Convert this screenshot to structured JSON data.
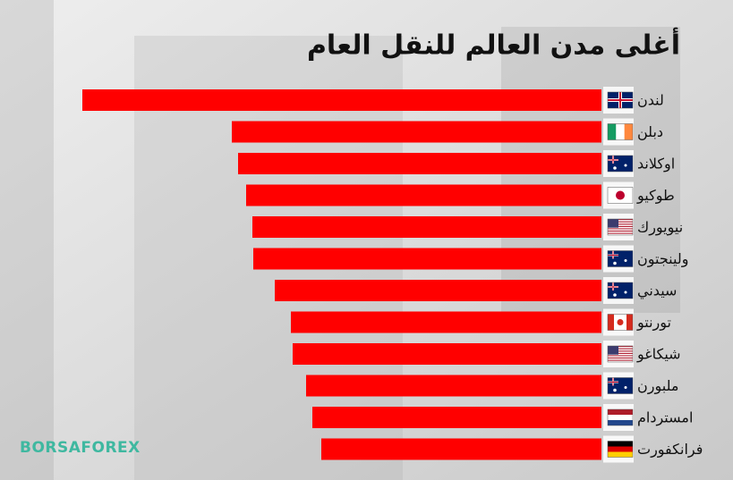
{
  "chart_data": {
    "type": "bar",
    "orientation": "horizontal",
    "title": "أغلى مدن العالم للنقل العام",
    "categories": [
      "لندن",
      "دبلن",
      "اوكلاند",
      "طوكيو",
      "نيويورك",
      "ولينجتون",
      "سيدني",
      "تورنتو",
      "شيكاغو",
      "ملبورن",
      "امستردام",
      "فرانكفورت"
    ],
    "values": [
      580,
      413,
      406,
      397,
      390,
      389,
      365,
      347,
      345,
      330,
      323,
      313
    ],
    "color": "#ff0000"
  },
  "logo": "BORSAFOREX"
}
